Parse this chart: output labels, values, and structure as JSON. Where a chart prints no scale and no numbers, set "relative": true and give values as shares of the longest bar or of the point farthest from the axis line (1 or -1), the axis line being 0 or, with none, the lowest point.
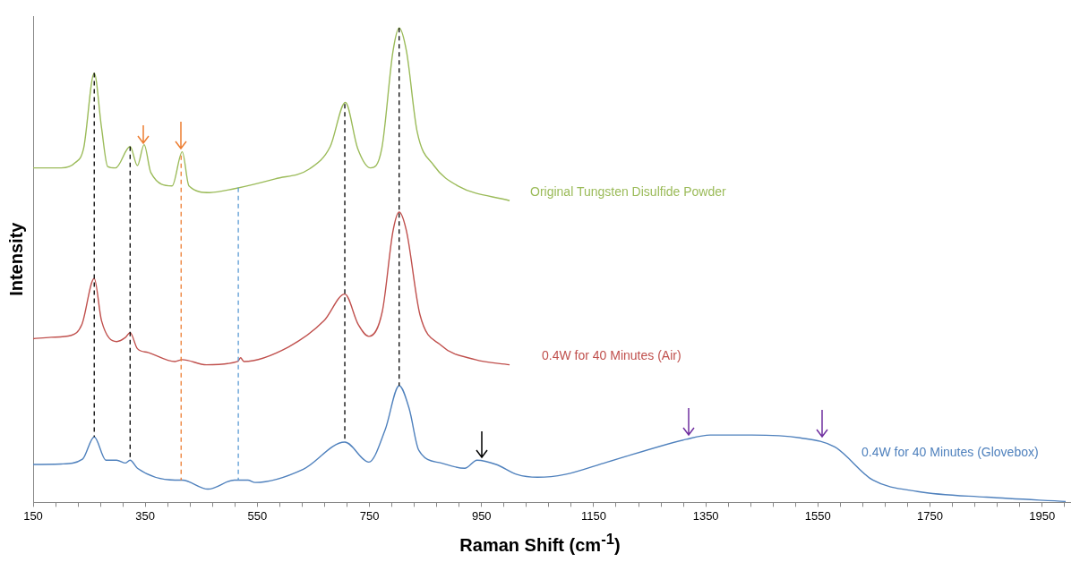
{
  "chart_data": {
    "type": "line",
    "xlabel": "Raman Shift (cm$^{-1}$)",
    "ylabel": "Intensity",
    "relative": true,
    "grid": false,
    "legend": false,
    "marker": "none",
    "line_style": "solid",
    "xlim": [
      150,
      2000
    ],
    "xticks": [
      150,
      {
        "value": 190,
        "label": null
      },
      {
        "value": 230,
        "label": null
      },
      {
        "value": 270,
        "label": null
      },
      {
        "value": 310,
        "label": null
      },
      350,
      {
        "value": 390,
        "label": null
      },
      {
        "value": 430,
        "label": null
      },
      {
        "value": 470,
        "label": null
      },
      {
        "value": 510,
        "label": null
      },
      550,
      {
        "value": 590,
        "label": null
      },
      {
        "value": 630,
        "label": null
      },
      {
        "value": 670,
        "label": null
      },
      {
        "value": 710,
        "label": null
      },
      750,
      {
        "value": 790,
        "label": null
      },
      {
        "value": 830,
        "label": null
      },
      {
        "value": 870,
        "label": null
      },
      {
        "value": 910,
        "label": null
      },
      950,
      {
        "value": 990,
        "label": null
      },
      {
        "value": 1030,
        "label": null
      },
      {
        "value": 1070,
        "label": null
      },
      {
        "value": 1110,
        "label": null
      },
      1150,
      {
        "value": 1190,
        "label": null
      },
      {
        "value": 1230,
        "label": null
      },
      {
        "value": 1270,
        "label": null
      },
      {
        "value": 1310,
        "label": null
      },
      1350,
      {
        "value": 1390,
        "label": null
      },
      {
        "value": 1430,
        "label": null
      },
      {
        "value": 1470,
        "label": null
      },
      {
        "value": 1510,
        "label": null
      },
      1550,
      {
        "value": 1590,
        "label": null
      },
      {
        "value": 1630,
        "label": null
      },
      {
        "value": 1670,
        "label": null
      },
      {
        "value": 1710,
        "label": null
      },
      1750,
      {
        "value": 1790,
        "label": null
      },
      {
        "value": 1830,
        "label": null
      },
      {
        "value": 1870,
        "label": null
      },
      {
        "value": 1910,
        "label": null
      },
      1950,
      {
        "value": 1990,
        "label": null
      }
    ],
    "series": [
      {
        "name": "Original Tungsten Disulfide Powder",
        "color": "#9bbb59",
        "x": [
          150,
          200,
          225,
          240,
          259,
          272,
          283,
          297,
          323,
          336,
          348,
          360,
          398,
          416,
          428,
          465,
          508,
          582,
          643,
          680,
          707,
          729,
          752,
          772,
          792,
          803,
          816,
          835,
          865,
          908,
          1000
        ],
        "values": [
          0.705,
          0.705,
          0.716,
          0.746,
          0.905,
          0.79,
          0.708,
          0.705,
          0.75,
          0.71,
          0.754,
          0.695,
          0.667,
          0.739,
          0.667,
          0.653,
          0.661,
          0.682,
          0.703,
          0.75,
          0.843,
          0.746,
          0.705,
          0.746,
          0.951,
          1.0,
          0.951,
          0.782,
          0.71,
          0.667,
          0.636
        ]
      },
      {
        "name": "0.4W for 40 Minutes (Air)",
        "color": "#c0504d",
        "x": [
          150,
          182,
          218,
          237,
          259,
          272,
          299,
          315,
          323,
          336,
          355,
          403,
          416,
          459,
          515,
          520,
          526,
          606,
          669,
          706,
          730,
          749,
          773,
          792,
          803,
          816,
          840,
          878,
          939,
          1000
        ],
        "values": [
          0.345,
          0.348,
          0.352,
          0.375,
          0.472,
          0.383,
          0.339,
          0.348,
          0.358,
          0.324,
          0.316,
          0.297,
          0.301,
          0.29,
          0.297,
          0.305,
          0.297,
          0.328,
          0.383,
          0.439,
          0.375,
          0.35,
          0.403,
          0.572,
          0.612,
          0.572,
          0.396,
          0.331,
          0.301,
          0.29
        ]
      },
      {
        "name": "0.4W for 40 Minutes (Glovebox)",
        "color": "#4f81bd",
        "x": [
          150,
          200,
          238,
          259,
          280,
          299,
          315,
          323,
          336,
          403,
          416,
          462,
          509,
          533,
          546,
          632,
          706,
          749,
          778,
          803,
          821,
          838,
          878,
          920,
          942,
          976,
          1013,
          1050,
          1099,
          1174,
          1315,
          1358,
          1432,
          1518,
          1580,
          1648,
          1728,
          1851,
          1992
        ],
        "values": [
          0.08,
          0.081,
          0.091,
          0.138,
          0.089,
          0.089,
          0.083,
          0.089,
          0.072,
          0.047,
          0.047,
          0.028,
          0.047,
          0.047,
          0.042,
          0.07,
          0.127,
          0.085,
          0.153,
          0.246,
          0.197,
          0.11,
          0.083,
          0.072,
          0.089,
          0.08,
          0.059,
          0.053,
          0.059,
          0.085,
          0.133,
          0.142,
          0.142,
          0.136,
          0.117,
          0.047,
          0.023,
          0.011,
          0.002
        ]
      }
    ],
    "ref_lines": [
      {
        "axis": "x",
        "value": 259,
        "color": "#000000",
        "line_style": "dashed"
      },
      {
        "axis": "x",
        "value": 323,
        "color": "#000000",
        "line_style": "dashed"
      },
      {
        "axis": "x",
        "value": 414,
        "color": "#ed7d31",
        "line_style": "dashed"
      },
      {
        "axis": "x",
        "value": 516,
        "color": "#5b9bd5",
        "line_style": "dashed"
      },
      {
        "axis": "x",
        "value": 706,
        "color": "#000000",
        "line_style": "dashed"
      },
      {
        "axis": "x",
        "value": 803,
        "color": "#000000",
        "line_style": "dashed"
      }
    ]
  }
}
